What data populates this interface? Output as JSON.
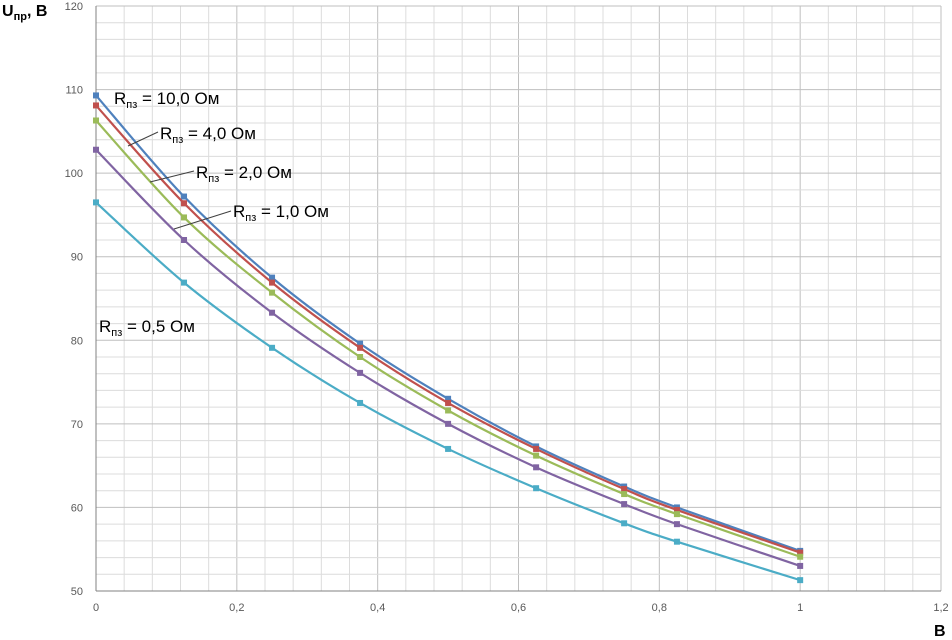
{
  "chart_data": {
    "type": "line",
    "title": "",
    "ylabel_main": "U",
    "ylabel_sub": "пр",
    "ylabel_rest": ", В",
    "xlabel": "B",
    "xlim": [
      0,
      1.2
    ],
    "ylim": [
      50,
      120
    ],
    "x_ticks": [
      "0",
      "0,2",
      "0,4",
      "0,6",
      "0,8",
      "1",
      "1,2"
    ],
    "y_ticks": [
      "50",
      "60",
      "70",
      "80",
      "90",
      "100",
      "110",
      "120"
    ],
    "grid": true,
    "legend": "inline labels",
    "x": [
      0,
      0.125,
      0.25,
      0.375,
      0.5,
      0.625,
      0.75,
      0.825,
      1.0
    ],
    "series": [
      {
        "name": "Rпз = 10,0 Ом",
        "label_main": "R",
        "label_sub": "пз",
        "label_rest": " = 10,0 Ом",
        "color": "#4f81bd",
        "values": [
          109.3,
          97.2,
          87.5,
          79.6,
          73.0,
          67.3,
          62.5,
          60.0,
          54.8
        ]
      },
      {
        "name": "Rпз = 4,0 Ом",
        "label_main": "R",
        "label_sub": "пз",
        "label_rest": " = 4,0 Ом",
        "color": "#c0504d",
        "values": [
          108.1,
          96.4,
          86.9,
          79.1,
          72.5,
          67.0,
          62.2,
          59.7,
          54.6
        ]
      },
      {
        "name": "Rпз = 2,0 Ом",
        "label_main": "R",
        "label_sub": "пз",
        "label_rest": " = 2,0 Ом",
        "color": "#9bbb59",
        "values": [
          106.3,
          94.7,
          85.7,
          78.0,
          71.6,
          66.2,
          61.6,
          59.2,
          54.1
        ]
      },
      {
        "name": "Rпз = 1,0 Ом",
        "label_main": "R",
        "label_sub": "пз",
        "label_rest": " = 1,0 Ом",
        "color": "#8064a2",
        "values": [
          102.8,
          92.0,
          83.3,
          76.1,
          70.0,
          64.8,
          60.4,
          58.0,
          53.0
        ]
      },
      {
        "name": "Rпз = 0,5 Ом",
        "label_main": "R",
        "label_sub": "пз",
        "label_rest": " = 0,5 Ом",
        "color": "#4bacc6",
        "values": [
          96.5,
          86.9,
          79.1,
          72.5,
          67.0,
          62.3,
          58.1,
          55.9,
          51.3
        ]
      }
    ]
  }
}
